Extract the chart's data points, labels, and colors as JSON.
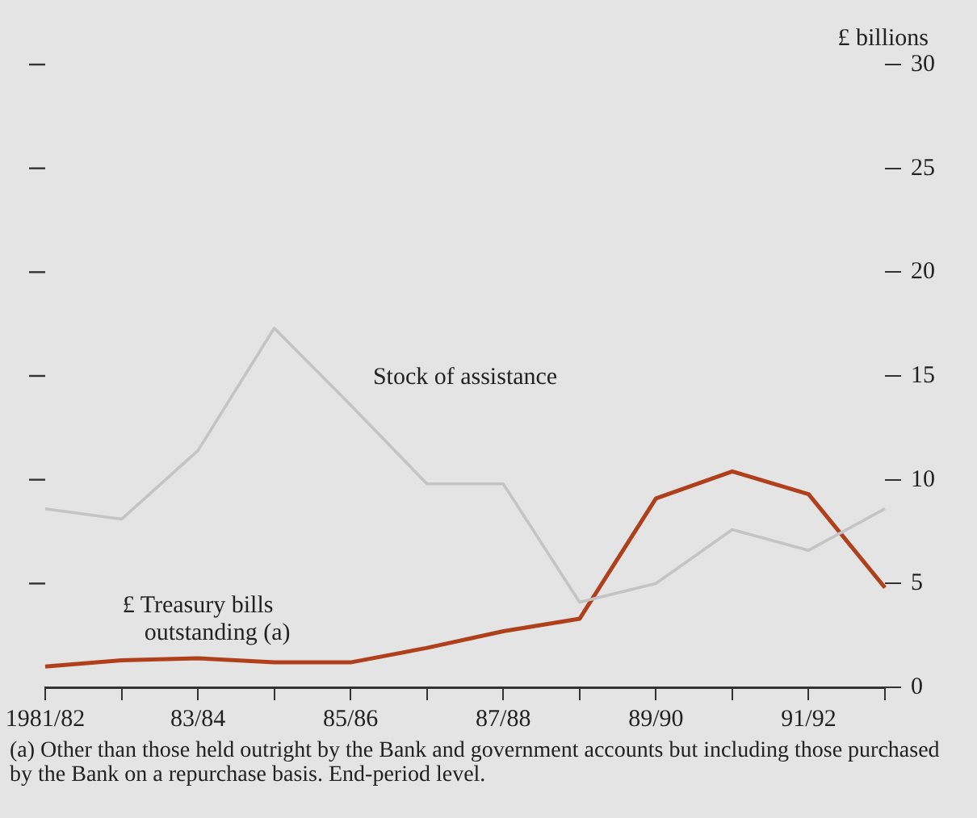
{
  "chart_data": {
    "type": "line",
    "ylabel": "£ billions",
    "categories": [
      "1981/82",
      null,
      "83/84",
      null,
      "85/86",
      null,
      "87/88",
      null,
      "89/90",
      null,
      "91/92",
      null
    ],
    "series": [
      {
        "name": "Stock of assistance",
        "color": "#c4c4c4",
        "values": [
          8.6,
          8.1,
          11.4,
          17.3,
          13.6,
          9.8,
          9.8,
          4.1,
          5.0,
          7.6,
          6.6,
          8.6
        ]
      },
      {
        "name": "£ Treasury bills outstanding (a)",
        "color": "#b0401c",
        "values": [
          1.0,
          1.3,
          1.4,
          1.2,
          1.2,
          1.9,
          2.7,
          3.3,
          9.1,
          10.4,
          9.3,
          4.8
        ]
      }
    ],
    "ylim": [
      0,
      30
    ],
    "yticks": [
      0,
      5,
      10,
      15,
      20,
      25,
      30
    ],
    "grid": false,
    "legend": false,
    "marker": "none",
    "line_style": "solid",
    "annotations": [
      "(a) Other than those held outright by the Bank and government accounts but including those purchased by the Bank on a repurchase basis. End-period level."
    ]
  }
}
